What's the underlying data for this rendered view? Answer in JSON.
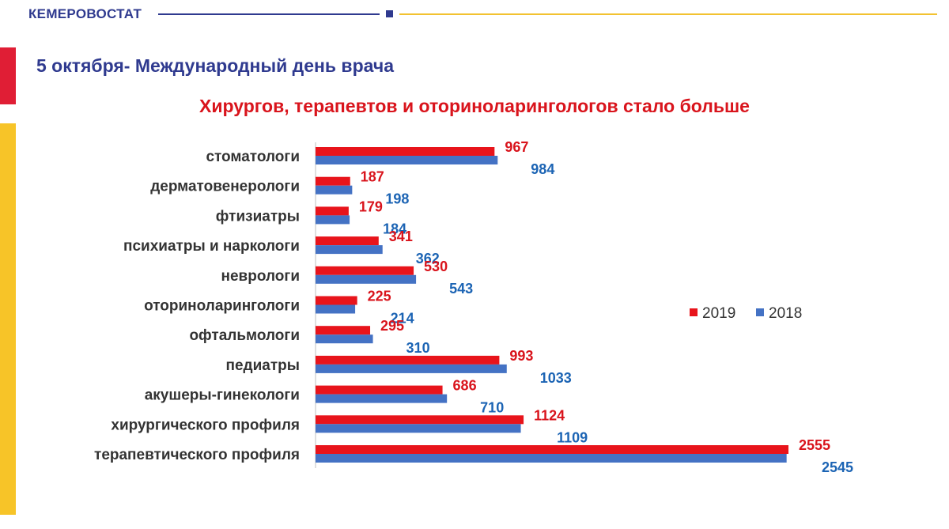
{
  "header": {
    "brand": "КЕМЕРОВОСТАТ",
    "page_title": "5 октября- Международный день врача"
  },
  "colors": {
    "brand_blue": "#2f3a8f",
    "accent_red": "#e01e35",
    "accent_yellow": "#f7c428",
    "series_2019": "#e8141b",
    "series_2018": "#4472c4"
  },
  "chart_data": {
    "type": "bar",
    "orientation": "horizontal",
    "title": "Хирургов, терапевтов и оториноларингологов  стало больше",
    "categories": [
      "стоматологи",
      "дерматовенерологи",
      "фтизиатры",
      "психиатры и наркологи",
      "неврологи",
      "оториноларингологи",
      "офтальмологи",
      "педиатры",
      "акушеры-гинекологи",
      "хирургического профиля",
      "терапевтического профиля"
    ],
    "series": [
      {
        "name": "2019",
        "color": "#e8141b",
        "values": [
          967,
          187,
          179,
          341,
          530,
          225,
          295,
          993,
          686,
          1124,
          2555
        ]
      },
      {
        "name": "2018",
        "color": "#4472c4",
        "values": [
          984,
          198,
          184,
          362,
          543,
          214,
          310,
          1033,
          710,
          1109,
          2545
        ]
      }
    ],
    "legend_position": "right",
    "grid": false
  }
}
